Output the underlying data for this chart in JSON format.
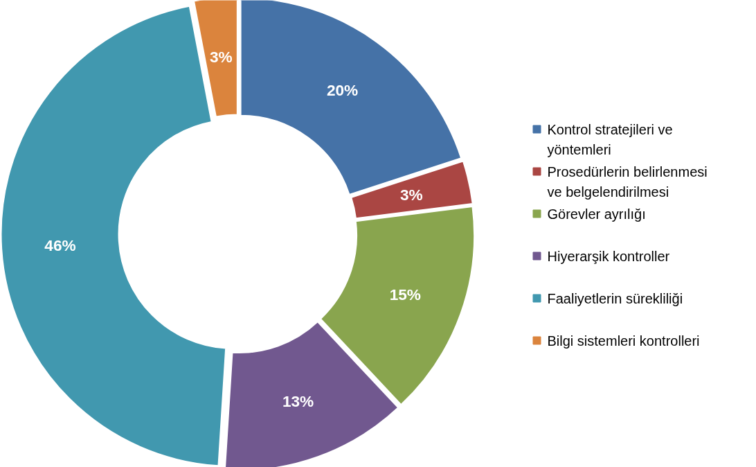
{
  "chart_data": {
    "type": "donut",
    "categories": [
      "Kontrol stratejileri ve yöntemleri",
      "Prosedürlerin belirlenmesi ve belgelendirilmesi",
      "Görevler ayrılığı",
      "Hiyerarşik kontroller",
      "Faaliyetlerin sürekliliği",
      "Bilgi sistemleri kontrolleri"
    ],
    "values": [
      20,
      3,
      15,
      13,
      46,
      3
    ],
    "colors": [
      "#4572a7",
      "#aa4643",
      "#89a54e",
      "#71588f",
      "#4198af",
      "#db843d"
    ],
    "value_labels": [
      "20%",
      "3%",
      "15%",
      "13%",
      "46%",
      "3%"
    ],
    "legend": "right"
  }
}
